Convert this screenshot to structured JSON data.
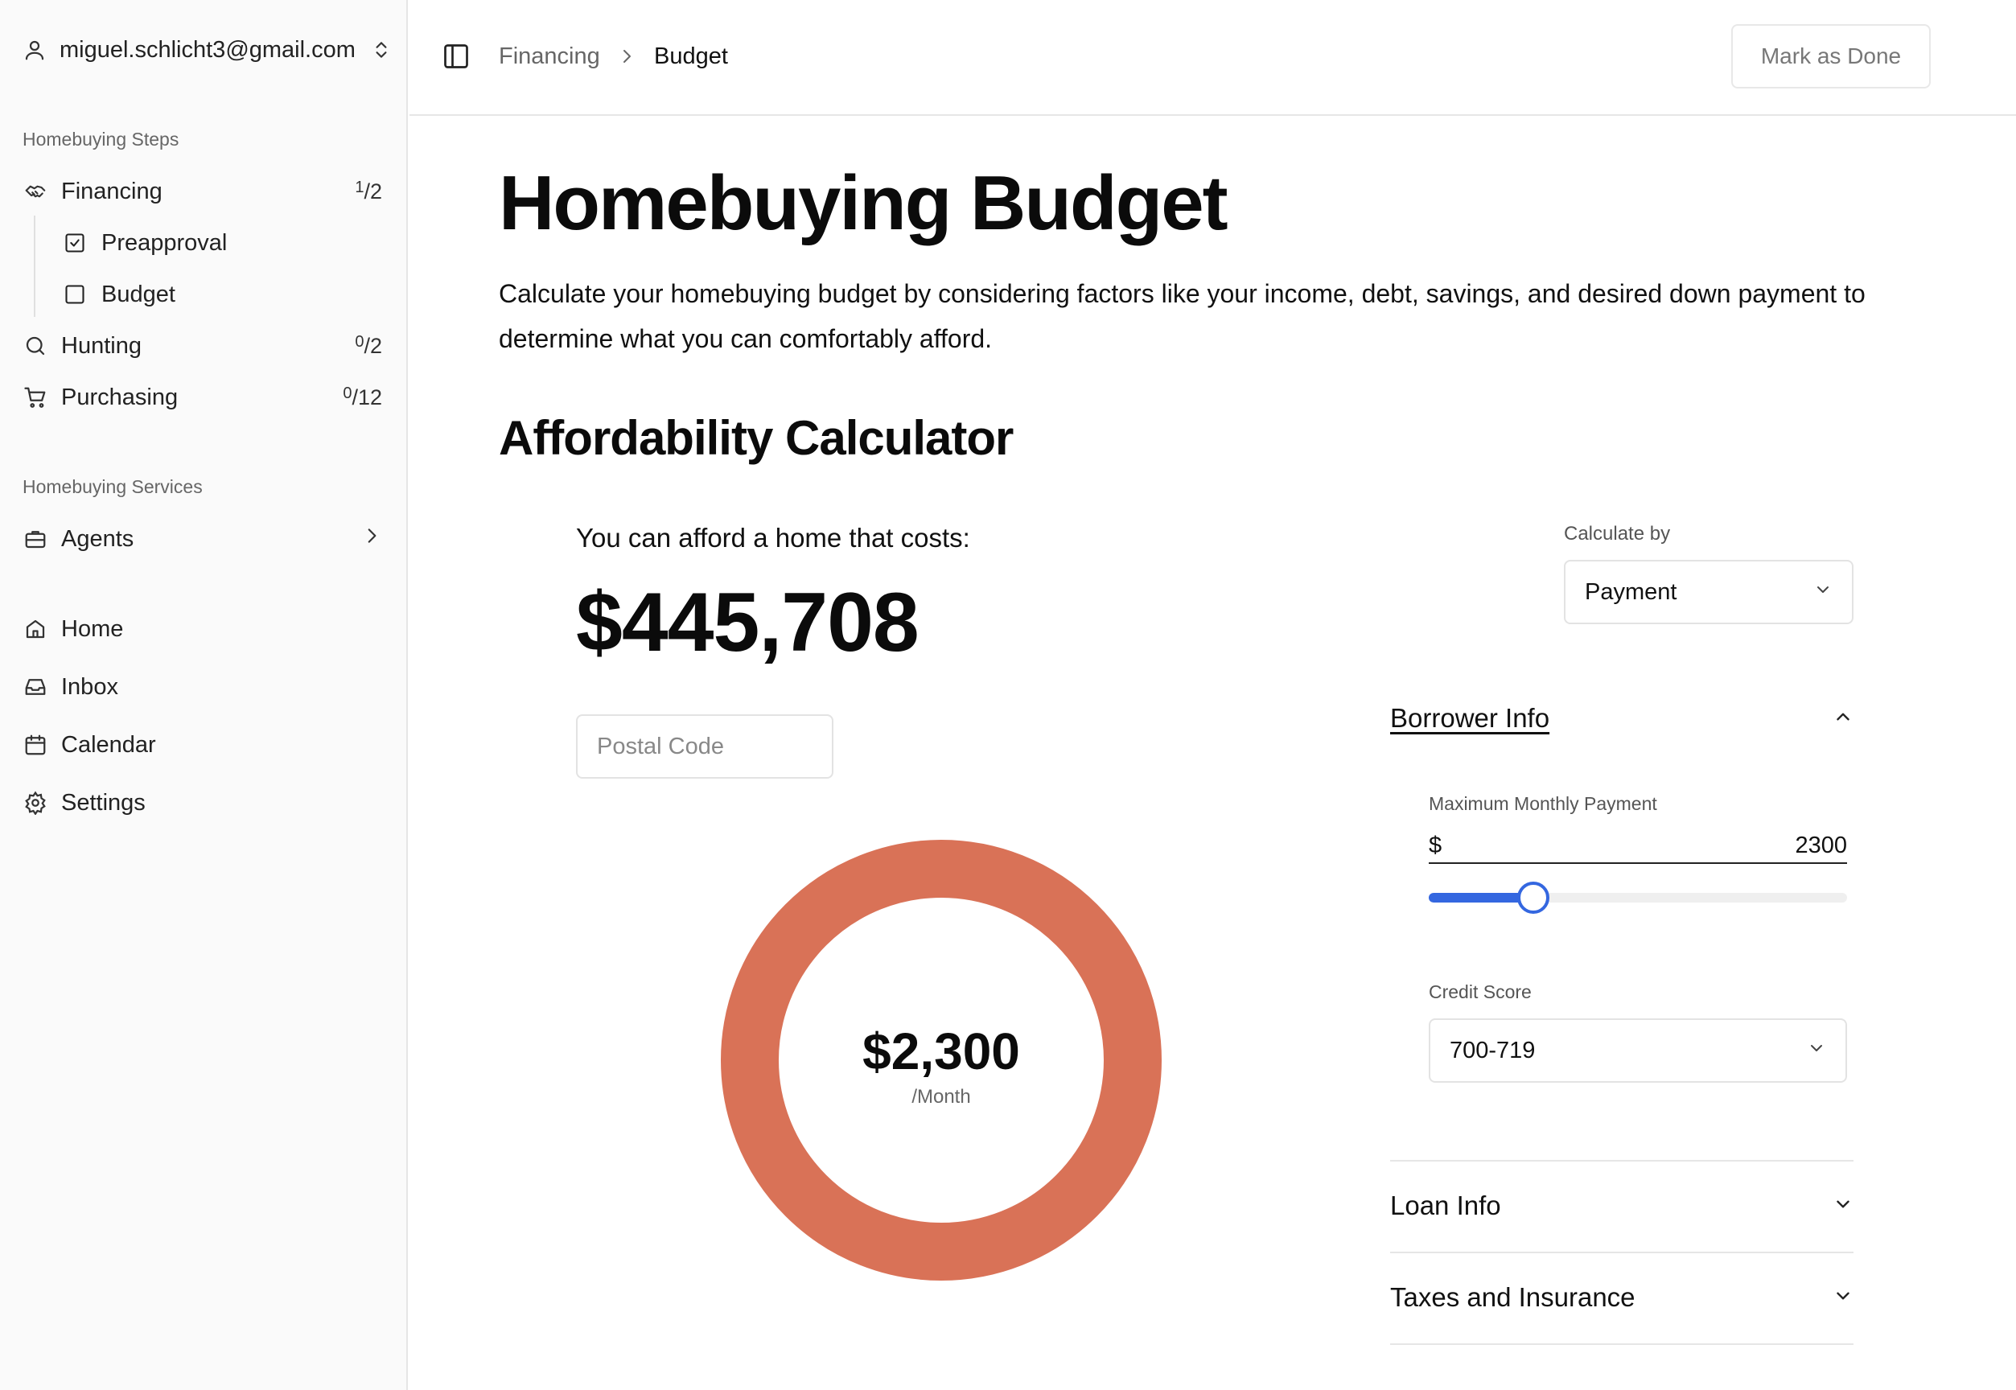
{
  "account": {
    "email": "miguel.schlicht3@gmail.com"
  },
  "sidebar": {
    "steps_label": "Homebuying Steps",
    "steps": [
      {
        "label": "Financing",
        "done": "1",
        "total": "2"
      },
      {
        "label": "Hunting",
        "done": "0",
        "total": "2"
      },
      {
        "label": "Purchasing",
        "done": "0",
        "total": "12"
      }
    ],
    "financing_sub": [
      {
        "label": "Preapproval",
        "checked": true
      },
      {
        "label": "Budget",
        "checked": false
      }
    ],
    "services_label": "Homebuying Services",
    "services": [
      {
        "label": "Agents"
      }
    ],
    "nav": [
      {
        "label": "Home",
        "icon": "home-icon"
      },
      {
        "label": "Inbox",
        "icon": "inbox-icon"
      },
      {
        "label": "Calendar",
        "icon": "calendar-icon"
      },
      {
        "label": "Settings",
        "icon": "gear-icon"
      }
    ]
  },
  "breadcrumb": {
    "parent": "Financing",
    "current": "Budget"
  },
  "header": {
    "mark_done": "Mark as Done"
  },
  "page": {
    "title": "Homebuying Budget",
    "intro": "Calculate your homebuying budget by considering factors like your income, debt, savings, and desired down payment to determine what you can comfortably afford.",
    "calc_title": "Affordability Calculator"
  },
  "calculator": {
    "afford_label": "You can afford a home that costs:",
    "afford_value": "$445,708",
    "postal_placeholder": "Postal Code",
    "monthly_value": "$2,300",
    "monthly_unit": "/Month",
    "donut_color": "#d97257",
    "calc_by_label": "Calculate by",
    "calc_by_value": "Payment",
    "borrower_title": "Borrower Info",
    "max_payment_label": "Maximum Monthly Payment",
    "currency_symbol": "$",
    "max_payment_value": "2300",
    "slider_fraction": 0.25,
    "slider_color": "#3467e0",
    "credit_label": "Credit Score",
    "credit_value": "700-719",
    "loan_title": "Loan Info",
    "tax_title": "Taxes and Insurance"
  }
}
